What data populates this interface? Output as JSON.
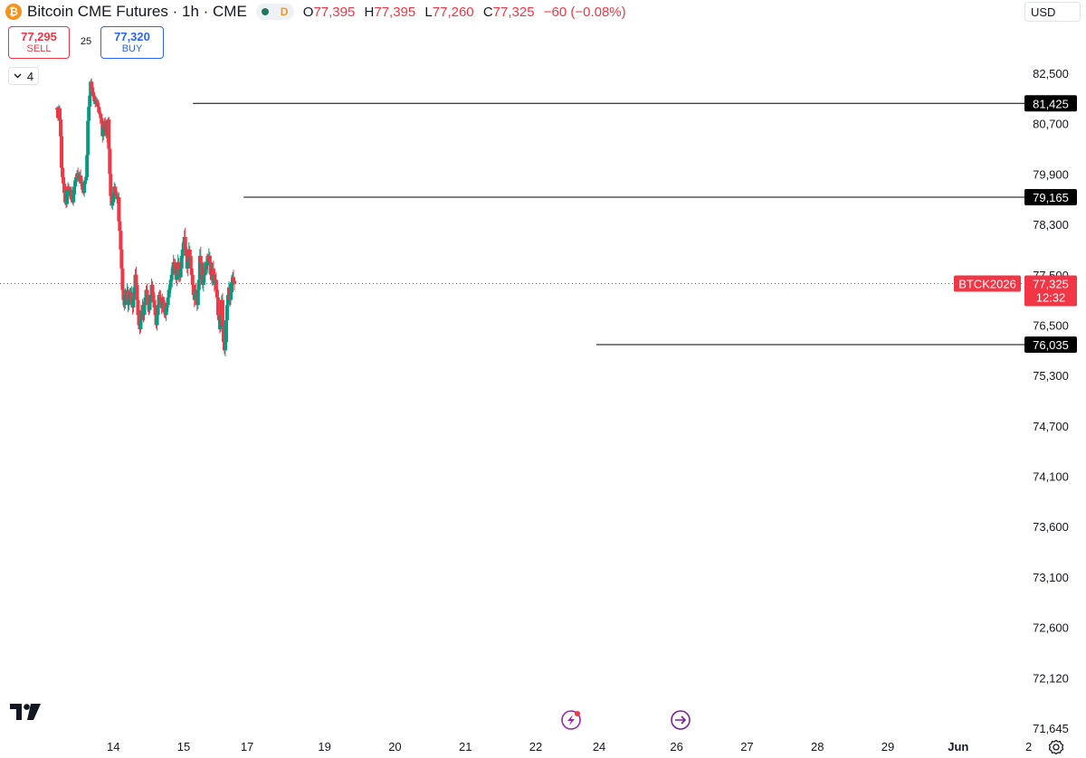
{
  "header": {
    "coin_icon": "bitcoin-icon",
    "title": "Bitcoin CME Futures · 1h · CME",
    "status_letter": "D",
    "ohlc": [
      {
        "key": "O",
        "value": "77,395"
      },
      {
        "key": "H",
        "value": "77,395"
      },
      {
        "key": "L",
        "value": "77,260"
      },
      {
        "key": "C",
        "value": "77,325"
      }
    ],
    "change": "−60 (−0.08%)"
  },
  "trade": {
    "sell_price": "77,295",
    "sell_label": "SELL",
    "spread": "25",
    "buy_price": "77,320",
    "buy_label": "BUY"
  },
  "indicators": {
    "count": "4"
  },
  "currency": "USD",
  "colors": {
    "up": "#089981",
    "down": "#f23645",
    "label_bg": "#000000",
    "price_tag": "#f23645"
  },
  "chart_data": {
    "type": "candlestick",
    "symbol": "BTCK2026",
    "interval": "1h",
    "ylim": [
      71400,
      83100
    ],
    "y_ticks": [
      "82,500",
      "80,700",
      "79,900",
      "78,300",
      "77,500",
      "76,500",
      "75,300",
      "74,700",
      "74,100",
      "73,600",
      "73,100",
      "72,600",
      "72,120",
      "71,645"
    ],
    "y_tick_values": [
      82500,
      80700,
      79900,
      78300,
      77500,
      76500,
      75300,
      74700,
      74100,
      73600,
      73100,
      72600,
      72120,
      71645
    ],
    "x_ticks": [
      {
        "label": "14",
        "t": 0.8
      },
      {
        "label": "15",
        "t": 1.8
      },
      {
        "label": "17",
        "t": 2.7
      },
      {
        "label": "19",
        "t": 3.8
      },
      {
        "label": "20",
        "t": 4.8
      },
      {
        "label": "21",
        "t": 5.8
      },
      {
        "label": "22",
        "t": 6.8
      },
      {
        "label": "24",
        "t": 7.7
      },
      {
        "label": "26",
        "t": 8.8
      },
      {
        "label": "27",
        "t": 9.8
      },
      {
        "label": "28",
        "t": 10.8
      },
      {
        "label": "29",
        "t": 11.8
      },
      {
        "label": "Jun",
        "t": 12.8,
        "bold": true
      },
      {
        "label": "2",
        "t": 13.8
      }
    ],
    "horizontal_lines": [
      {
        "price": 81425,
        "label": "81,425",
        "start_t": 1.93
      },
      {
        "price": 79165,
        "label": "79,165",
        "start_t": 2.65
      },
      {
        "price": 76035,
        "label": "76,035",
        "start_t": 7.66
      }
    ],
    "last_price": {
      "price": 77325,
      "label": "77,325",
      "symbol": "BTCK2026",
      "countdown": "12:32"
    },
    "start_t": 0.0,
    "step_t": 0.01292,
    "closes": [
      81200,
      80900,
      81250,
      80850,
      80500,
      80000,
      79800,
      79600,
      79300,
      79000,
      78950,
      79400,
      79500,
      79350,
      79200,
      79400,
      79100,
      79000,
      79250,
      79500,
      79700,
      79800,
      79900,
      79750,
      79800,
      79850,
      79600,
      79650,
      79400,
      79300,
      79600,
      79700,
      79800,
      80200,
      80800,
      81300,
      81700,
      82200,
      82000,
      81800,
      81700,
      81500,
      81400,
      81550,
      81450,
      81300,
      81100,
      81050,
      80900,
      80700,
      80500,
      80650,
      80800,
      80600,
      80700,
      80500,
      80850,
      80300,
      79900,
      79200,
      78900,
      79000,
      79300,
      79500,
      79350,
      79200,
      79100,
      79165,
      78400,
      78200,
      77900,
      77600,
      77200,
      77000,
      76900,
      77100,
      77050,
      77200,
      76900,
      77000,
      77100,
      77150,
      76950,
      76850,
      77050,
      77250,
      77500,
      77300,
      77000,
      76700,
      76500,
      76400,
      76600,
      76800,
      76900,
      76700,
      76900,
      77050,
      77200,
      77100,
      76900,
      76800,
      76950,
      77100,
      77300,
      77100,
      77000,
      76850,
      76700,
      76500,
      76700,
      76900,
      77100,
      77050,
      76900,
      76850,
      77000,
      76950,
      76750,
      76700,
      76850,
      76900,
      77050,
      77200,
      77250,
      77400,
      77500,
      77600,
      77700,
      77650,
      77550,
      77400,
      77600,
      77700,
      77500,
      77450,
      77600,
      77800,
      77900,
      78000,
      78100,
      77900,
      77800,
      77600,
      77700,
      77900,
      77800,
      77600,
      77500,
      77300,
      77100,
      77000,
      77200,
      77100,
      76900,
      77200,
      77400,
      77800,
      77700,
      77500,
      77300,
      77600,
      77500,
      77600,
      77700,
      77650,
      77750,
      77800,
      77700,
      77500,
      77400,
      77600,
      77500,
      77300,
      77400,
      77200,
      77050,
      76700,
      76600,
      76400,
      76700,
      77000,
      76500,
      76100,
      75900,
      76100,
      76600,
      76900,
      77100,
      77250,
      77000,
      77150,
      77350,
      77450,
      77380,
      77325
    ]
  },
  "event_icons": [
    "lightning-event-icon",
    "forward-arrow-event-icon"
  ],
  "brand": "tradingview-logo",
  "settings_icon": "gear-icon"
}
